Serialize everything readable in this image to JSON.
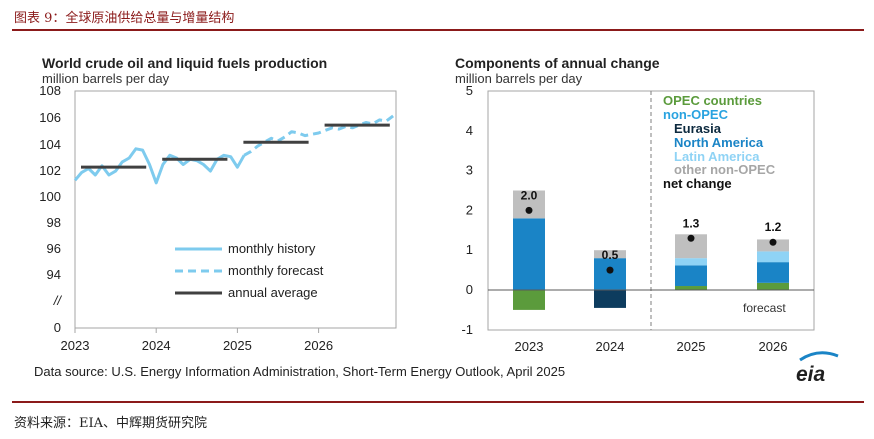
{
  "figure": {
    "label": "图表 9：全球原油供给总量与增量结构",
    "source": "资料来源：EIA、中辉期货研究院",
    "data_source": "Data source: U.S. Energy Information Administration, Short-Term Energy Outlook, April 2025",
    "logo_text": "eia"
  },
  "chart_data": [
    {
      "type": "line",
      "title": "World crude oil and liquid fuels production",
      "subtitle": "million barrels per day",
      "x_ticks": [
        "2023",
        "2024",
        "2025",
        "2026"
      ],
      "y_ticks": [
        "108",
        "106",
        "104",
        "102",
        "100",
        "98",
        "96",
        "94",
        "//",
        "0"
      ],
      "ylim": [
        93,
        108
      ],
      "axis_break": true,
      "legend": {
        "position": "bottom-left",
        "entries": [
          "monthly history",
          "monthly forecast",
          "annual average"
        ]
      },
      "series": [
        {
          "name": "monthly history",
          "x": [
            2023.0,
            2023.083,
            2023.167,
            2023.25,
            2023.333,
            2023.417,
            2023.5,
            2023.583,
            2023.667,
            2023.75,
            2023.833,
            2023.917,
            2024.0,
            2024.083,
            2024.167,
            2024.25,
            2024.333,
            2024.417,
            2024.5,
            2024.583,
            2024.667,
            2024.75,
            2024.833,
            2024.917,
            2025.0,
            2025.083
          ],
          "values": [
            101.2,
            101.8,
            102.1,
            101.6,
            102.3,
            101.6,
            101.9,
            102.6,
            102.9,
            103.6,
            103.5,
            102.4,
            101.0,
            102.4,
            103.1,
            102.9,
            102.4,
            102.8,
            102.7,
            102.4,
            101.9,
            102.8,
            103.1,
            103.0,
            102.2,
            103.1
          ]
        },
        {
          "name": "monthly forecast",
          "x": [
            2025.083,
            2025.167,
            2025.25,
            2025.333,
            2025.417,
            2025.5,
            2025.583,
            2025.667,
            2025.75,
            2025.833,
            2025.917,
            2026.0,
            2026.083,
            2026.167,
            2026.25,
            2026.333,
            2026.417,
            2026.5,
            2026.583,
            2026.667,
            2026.75,
            2026.833,
            2026.917
          ],
          "values": [
            103.1,
            103.4,
            103.8,
            104.1,
            104.4,
            104.2,
            104.5,
            104.9,
            104.8,
            104.6,
            104.7,
            104.8,
            105.0,
            105.2,
            105.1,
            105.3,
            105.2,
            105.4,
            105.6,
            105.5,
            105.8,
            105.7,
            106.1
          ]
        },
        {
          "name": "annual average",
          "segments": [
            {
              "year": "2023",
              "value": 102.2
            },
            {
              "year": "2024",
              "value": 102.8
            },
            {
              "year": "2025",
              "value": 104.1
            },
            {
              "year": "2026",
              "value": 105.4
            }
          ]
        }
      ]
    },
    {
      "type": "bar",
      "stacked": true,
      "title": "Components of annual change",
      "subtitle": "million barrels per day",
      "categories": [
        "2023",
        "2024",
        "2025",
        "2026"
      ],
      "y_ticks": [
        "5",
        "4",
        "3",
        "2",
        "1",
        "0",
        "-1"
      ],
      "ylim": [
        -1,
        5
      ],
      "annotation": "forecast",
      "legend": {
        "position": "top-right",
        "entries": [
          "OPEC countries",
          "non-OPEC",
          "Eurasia",
          "North America",
          "Latin America",
          "other non-OPEC",
          "net change"
        ]
      },
      "series": [
        {
          "name": "OPEC countries",
          "color": "#5b9b3c",
          "values": [
            -0.5,
            0.0,
            0.1,
            0.18
          ]
        },
        {
          "name": "Eurasia",
          "color": "#0d3c5e",
          "values": [
            0.0,
            -0.45,
            0.0,
            0.0
          ]
        },
        {
          "name": "North America",
          "color": "#1a84c6",
          "values": [
            1.8,
            0.8,
            0.52,
            0.52
          ]
        },
        {
          "name": "Latin America",
          "color": "#8fd3f5",
          "values": [
            0.0,
            0.0,
            0.18,
            0.27
          ]
        },
        {
          "name": "other non-OPEC",
          "color": "#bfbfbf",
          "values": [
            0.7,
            0.2,
            0.6,
            0.3
          ]
        }
      ],
      "net_change": [
        2.0,
        0.5,
        1.3,
        1.2
      ],
      "net_change_labels": [
        "2.0",
        "0.5",
        "1.3",
        "1.2"
      ]
    }
  ]
}
